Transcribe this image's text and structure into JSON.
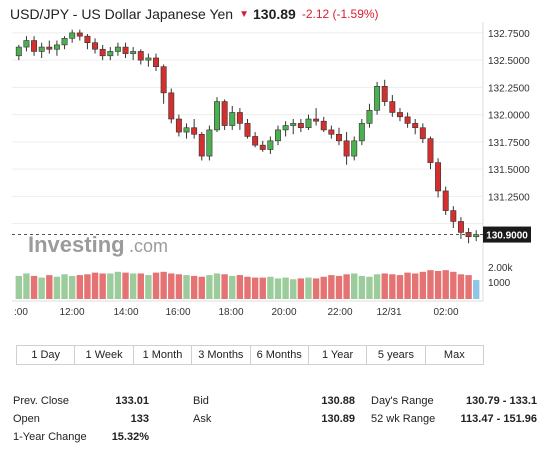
{
  "header": {
    "title": "USD/JPY - US Dollar Japanese Yen",
    "price": "130.89",
    "change": "-2.12 (-1.59%)"
  },
  "chart": {
    "watermark_main": "Investing",
    "watermark_suffix": ".com",
    "y_ticks": [
      "132.7500",
      "132.5000",
      "132.2500",
      "132.0000",
      "131.7500",
      "131.5000",
      "131.2500",
      "131.0000"
    ],
    "current_price_label": "130.9000",
    "x_ticks": [
      ":00",
      "12:00",
      "14:00",
      "16:00",
      "18:00",
      "20:00",
      "22:00",
      "12/31",
      "02:00"
    ],
    "volume_ticks": [
      "2.00k",
      "1000"
    ],
    "colors": {
      "up": "#4caf50",
      "down": "#d32f2f",
      "volume_up": "#9ccc9c",
      "volume_down": "#e57373",
      "last_volume": "#8fc6e6"
    }
  },
  "chart_data": {
    "type": "candlestick",
    "title": "USD/JPY - US Dollar Japanese Yen",
    "y_range": [
      130.85,
      132.85
    ],
    "y_ticks": [
      132.75,
      132.5,
      132.25,
      132.0,
      131.75,
      131.5,
      131.25,
      131.0
    ],
    "x_tick_labels": [
      ":00",
      "12:00",
      "14:00",
      "16:00",
      "18:00",
      "20:00",
      "22:00",
      "12/31",
      "02:00"
    ],
    "last_price": 130.9,
    "candles": [
      [
        132.54,
        132.64,
        132.5,
        132.62
      ],
      [
        132.62,
        132.72,
        132.58,
        132.68
      ],
      [
        132.68,
        132.72,
        132.54,
        132.58
      ],
      [
        132.58,
        132.66,
        132.52,
        132.62
      ],
      [
        132.62,
        132.68,
        132.56,
        132.6
      ],
      [
        132.6,
        132.68,
        132.54,
        132.64
      ],
      [
        132.64,
        132.72,
        132.6,
        132.7
      ],
      [
        132.7,
        132.78,
        132.66,
        132.75
      ],
      [
        132.75,
        132.78,
        132.68,
        132.72
      ],
      [
        132.72,
        132.74,
        132.6,
        132.66
      ],
      [
        132.66,
        132.7,
        132.56,
        132.6
      ],
      [
        132.6,
        132.64,
        132.5,
        132.54
      ],
      [
        132.54,
        132.62,
        132.5,
        132.58
      ],
      [
        132.58,
        132.66,
        132.54,
        132.62
      ],
      [
        132.62,
        132.66,
        132.52,
        132.56
      ],
      [
        132.56,
        132.62,
        132.5,
        132.58
      ],
      [
        132.58,
        132.6,
        132.46,
        132.5
      ],
      [
        132.5,
        132.56,
        132.44,
        132.52
      ],
      [
        132.52,
        132.56,
        132.4,
        132.44
      ],
      [
        132.44,
        132.46,
        132.1,
        132.2
      ],
      [
        132.2,
        132.24,
        131.92,
        131.96
      ],
      [
        131.96,
        132.0,
        131.8,
        131.84
      ],
      [
        131.84,
        131.92,
        131.78,
        131.88
      ],
      [
        131.88,
        131.96,
        131.78,
        131.82
      ],
      [
        131.82,
        131.84,
        131.58,
        131.62
      ],
      [
        131.62,
        131.9,
        131.58,
        131.86
      ],
      [
        131.86,
        132.16,
        131.84,
        132.12
      ],
      [
        132.12,
        132.14,
        131.86,
        131.9
      ],
      [
        131.9,
        132.08,
        131.86,
        132.02
      ],
      [
        132.02,
        132.06,
        131.86,
        131.92
      ],
      [
        131.92,
        131.96,
        131.78,
        131.8
      ],
      [
        131.8,
        131.84,
        131.7,
        131.72
      ],
      [
        131.72,
        131.76,
        131.66,
        131.68
      ],
      [
        131.68,
        131.8,
        131.64,
        131.76
      ],
      [
        131.76,
        131.9,
        131.72,
        131.86
      ],
      [
        131.86,
        131.94,
        131.8,
        131.9
      ],
      [
        131.9,
        131.96,
        131.82,
        131.92
      ],
      [
        131.92,
        131.96,
        131.84,
        131.88
      ],
      [
        131.88,
        132.0,
        131.86,
        131.96
      ],
      [
        131.96,
        132.06,
        131.9,
        131.94
      ],
      [
        131.94,
        131.98,
        131.84,
        131.86
      ],
      [
        131.86,
        131.9,
        131.78,
        131.82
      ],
      [
        131.82,
        131.88,
        131.72,
        131.76
      ],
      [
        131.76,
        131.84,
        131.54,
        131.62
      ],
      [
        131.62,
        131.8,
        131.58,
        131.76
      ],
      [
        131.76,
        131.96,
        131.72,
        131.92
      ],
      [
        131.92,
        132.1,
        131.88,
        132.04
      ],
      [
        132.04,
        132.3,
        132.0,
        132.26
      ],
      [
        132.26,
        132.32,
        132.08,
        132.12
      ],
      [
        132.12,
        132.18,
        131.98,
        132.02
      ],
      [
        132.02,
        132.06,
        131.94,
        131.98
      ],
      [
        131.98,
        132.02,
        131.88,
        131.92
      ],
      [
        131.92,
        131.96,
        131.82,
        131.88
      ],
      [
        131.88,
        131.92,
        131.74,
        131.78
      ],
      [
        131.78,
        131.8,
        131.5,
        131.56
      ],
      [
        131.56,
        131.6,
        131.24,
        131.3
      ],
      [
        131.3,
        131.34,
        131.08,
        131.12
      ],
      [
        131.12,
        131.16,
        130.96,
        131.02
      ],
      [
        131.02,
        131.06,
        130.86,
        130.92
      ],
      [
        130.92,
        130.96,
        130.82,
        130.88
      ],
      [
        130.88,
        130.94,
        130.84,
        130.9
      ]
    ],
    "volume_range": [
      0,
      3000
    ],
    "volume": [
      1400,
      1550,
      1400,
      1300,
      1450,
      1350,
      1500,
      1400,
      1450,
      1500,
      1600,
      1550,
      1550,
      1650,
      1600,
      1550,
      1550,
      1450,
      1600,
      1650,
      1550,
      1500,
      1450,
      1400,
      1350,
      1450,
      1550,
      1500,
      1400,
      1450,
      1350,
      1300,
      1300,
      1350,
      1250,
      1300,
      1200,
      1250,
      1300,
      1250,
      1350,
      1450,
      1400,
      1500,
      1550,
      1400,
      1350,
      1500,
      1550,
      1500,
      1450,
      1600,
      1550,
      1650,
      1750,
      1700,
      1750,
      1650,
      1500,
      1450,
      1150
    ]
  },
  "ranges": [
    "1 Day",
    "1 Week",
    "1 Month",
    "3 Months",
    "6 Months",
    "1 Year",
    "5 years",
    "Max"
  ],
  "stats": [
    {
      "label": "Prev. Close",
      "value": "133.01"
    },
    {
      "label": "Open",
      "value": "133"
    },
    {
      "label": "1-Year Change",
      "value": "15.32%"
    },
    {
      "label": "Bid",
      "value": "130.88"
    },
    {
      "label": "Ask",
      "value": "130.89"
    },
    {
      "label": "Day's Range",
      "value": "130.79 - 133.1"
    },
    {
      "label": "52 wk Range",
      "value": "113.47 - 151.96"
    }
  ]
}
